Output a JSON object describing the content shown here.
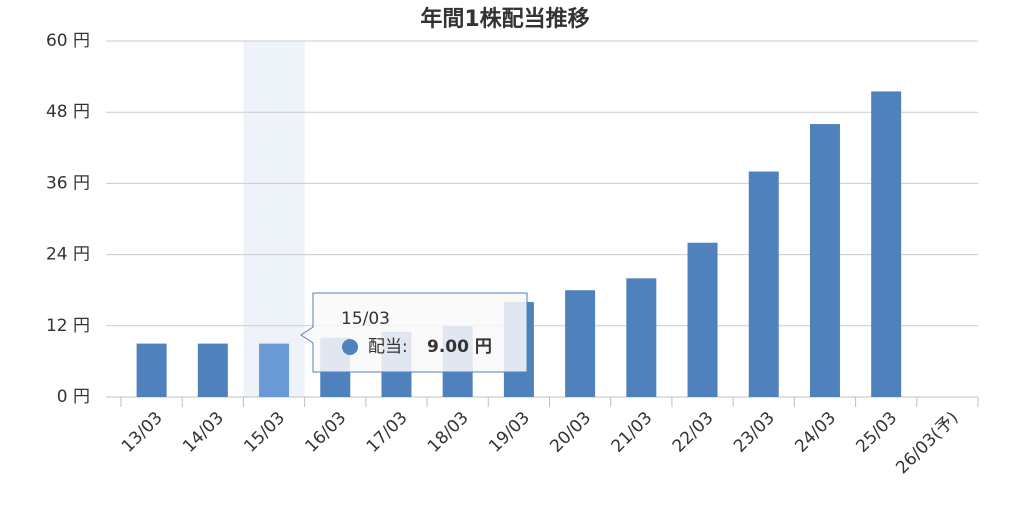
{
  "chart_data": {
    "type": "bar",
    "title": "年間1株配当推移",
    "categories": [
      "13/03",
      "14/03",
      "15/03",
      "16/03",
      "17/03",
      "18/03",
      "19/03",
      "20/03",
      "21/03",
      "22/03",
      "23/03",
      "24/03",
      "25/03",
      "26/03(予)"
    ],
    "series": [
      {
        "name": "配当",
        "color": "#4f81bd",
        "values": [
          9,
          9,
          9,
          10,
          11,
          12,
          16,
          18,
          20,
          26,
          38,
          46,
          51.5,
          null
        ]
      }
    ],
    "ylim": [
      0,
      60
    ],
    "yticks": [
      {
        "value": 0,
        "label": "0 円"
      },
      {
        "value": 12,
        "label": "12 円"
      },
      {
        "value": 24,
        "label": "24 円"
      },
      {
        "value": 36,
        "label": "36 円"
      },
      {
        "value": 48,
        "label": "48 円"
      },
      {
        "value": 60,
        "label": "60 円"
      }
    ],
    "grid": true,
    "tooltip": {
      "category": "15/03",
      "label": "配当:",
      "value": 9,
      "value_label": "9.00 円"
    }
  }
}
